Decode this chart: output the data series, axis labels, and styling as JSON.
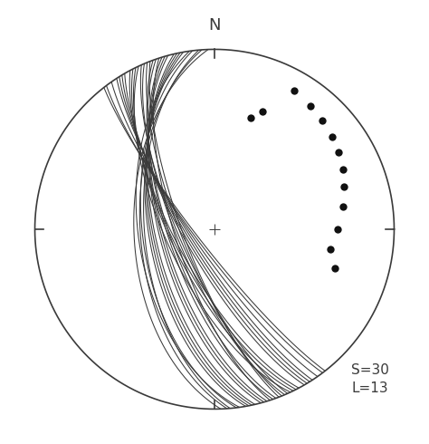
{
  "title_text": "N",
  "annotation": "S=30\nL=13",
  "annotation_fontsize": 11,
  "background_color": "#ffffff",
  "line_color": "#3a3a3a",
  "dot_color": "#111111",
  "dot_size": 6,
  "circle_linewidth": 1.2,
  "great_circle_linewidth": 0.75,
  "planes": [
    {
      "strike": 160,
      "dip": 70
    },
    {
      "strike": 162,
      "dip": 72
    },
    {
      "strike": 155,
      "dip": 68
    },
    {
      "strike": 158,
      "dip": 75
    },
    {
      "strike": 165,
      "dip": 65
    },
    {
      "strike": 152,
      "dip": 72
    },
    {
      "strike": 168,
      "dip": 62
    },
    {
      "strike": 170,
      "dip": 60
    },
    {
      "strike": 148,
      "dip": 78
    },
    {
      "strike": 145,
      "dip": 80
    },
    {
      "strike": 175,
      "dip": 58
    },
    {
      "strike": 172,
      "dip": 55
    },
    {
      "strike": 150,
      "dip": 76
    },
    {
      "strike": 178,
      "dip": 53
    },
    {
      "strike": 142,
      "dip": 82
    },
    {
      "strike": 163,
      "dip": 67
    },
    {
      "strike": 157,
      "dip": 73
    },
    {
      "strike": 153,
      "dip": 71
    },
    {
      "strike": 167,
      "dip": 63
    },
    {
      "strike": 173,
      "dip": 57
    },
    {
      "strike": 147,
      "dip": 79
    },
    {
      "strike": 161,
      "dip": 69
    },
    {
      "strike": 156,
      "dip": 74
    },
    {
      "strike": 169,
      "dip": 61
    },
    {
      "strike": 143,
      "dip": 81
    },
    {
      "strike": 176,
      "dip": 56
    },
    {
      "strike": 154,
      "dip": 70
    },
    {
      "strike": 164,
      "dip": 66
    },
    {
      "strike": 159,
      "dip": 76
    },
    {
      "strike": 149,
      "dip": 77
    }
  ],
  "lineations": [
    {
      "trend": 30,
      "plunge": 12
    },
    {
      "trend": 38,
      "plunge": 14
    },
    {
      "trend": 45,
      "plunge": 16
    },
    {
      "trend": 52,
      "plunge": 18
    },
    {
      "trend": 58,
      "plunge": 20
    },
    {
      "trend": 65,
      "plunge": 22
    },
    {
      "trend": 72,
      "plunge": 25
    },
    {
      "trend": 80,
      "plunge": 28
    },
    {
      "trend": 90,
      "plunge": 32
    },
    {
      "trend": 100,
      "plunge": 35
    },
    {
      "trend": 108,
      "plunge": 30
    },
    {
      "trend": 22,
      "plunge": 30
    },
    {
      "trend": 18,
      "plunge": 35
    }
  ]
}
